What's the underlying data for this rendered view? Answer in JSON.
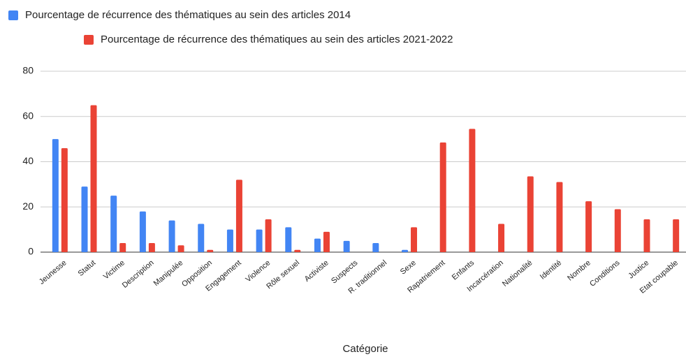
{
  "chart_data": {
    "type": "bar",
    "x_label": "Catégorie",
    "categories": [
      "Jeunesse",
      "Statut",
      "Victime",
      "Description",
      "Manipulée",
      "Opposition",
      "Engagement",
      "Violence",
      "Rôle sexuel",
      "Activiste",
      "Suspects",
      "R. traditionnel",
      "Sexe",
      "Rapatriement",
      "Enfants",
      "Incarcération",
      "Nationalité",
      "Identité",
      "Nombre",
      "Conditions",
      "Justice",
      "Etat coupable"
    ],
    "series": [
      {
        "name": "Pourcentage de récurrence des thématiques au sein des articles 2014",
        "color": "#4285f4",
        "values": [
          50,
          29,
          25,
          18,
          14,
          12.5,
          10,
          10,
          11,
          6,
          5,
          4,
          1,
          0,
          0,
          0,
          0,
          0,
          0,
          0,
          0,
          0
        ]
      },
      {
        "name": "Pourcentage de récurrence des thématiques au sein des articles 2021-2022",
        "color": "#ea4335",
        "values": [
          46,
          65,
          4,
          4,
          3,
          1,
          32,
          14.5,
          1,
          9,
          0,
          0,
          11,
          48.5,
          54.5,
          12.5,
          33.5,
          31,
          22.5,
          19,
          14.5,
          14.5
        ]
      }
    ],
    "ylim": [
      0,
      80
    ],
    "yticks": [
      0,
      20,
      40,
      60,
      80
    ],
    "grid": true
  }
}
